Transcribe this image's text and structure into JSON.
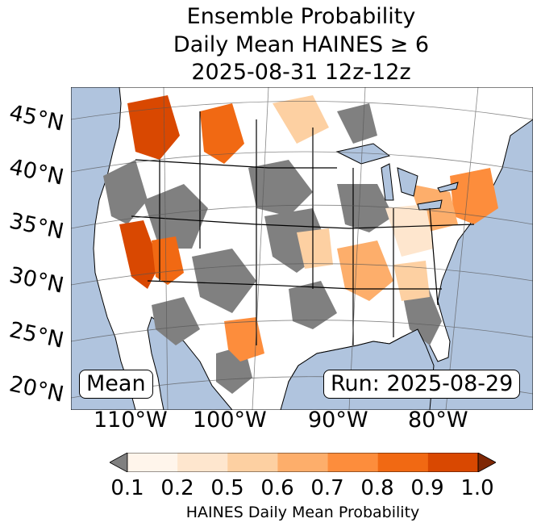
{
  "title": {
    "line1": "Ensemble Probability",
    "line2": "Daily Mean HAINES ≥ 6",
    "line3": "2025-08-31 12z-12z"
  },
  "map": {
    "lat_labels": [
      "45°N",
      "40°N",
      "35°N",
      "30°N",
      "25°N",
      "20°N"
    ],
    "lon_labels": [
      "110°W",
      "100°W",
      "90°W",
      "80°W"
    ],
    "ocean_color": "#b0c4de",
    "land_color": "#ffffff",
    "no_data_color": "#808080",
    "stat_label": "Mean",
    "run_label": "Run: 2025-08-29"
  },
  "colorbar": {
    "label": "HAINES Daily Mean Probability",
    "ticks": [
      "0.1",
      "0.2",
      "0.5",
      "0.6",
      "0.7",
      "0.8",
      "0.9",
      "1.0"
    ],
    "under_color": "#808080",
    "over_color": "#7f2704",
    "colors": [
      "#fff5eb",
      "#fee6ce",
      "#fdd0a2",
      "#fdae6b",
      "#fd8d3c",
      "#f16913",
      "#d94801"
    ]
  }
}
